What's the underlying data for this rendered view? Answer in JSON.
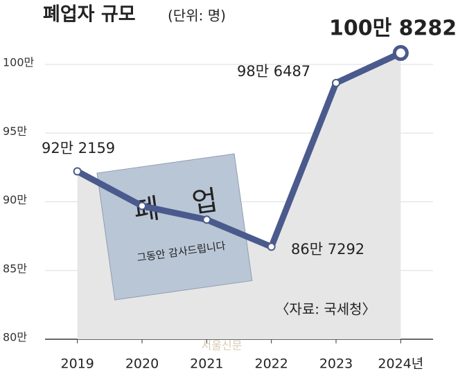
{
  "chart_data": {
    "type": "line",
    "title": "폐업자 규모",
    "subtitle": "(단위: 명)",
    "categories": [
      "2019",
      "2020",
      "2021",
      "2022",
      "2023",
      "2024년"
    ],
    "series": [
      {
        "name": "폐업자",
        "color": "#4a5a8c",
        "values": [
          92.2159,
          89.7,
          88.7,
          86.7292,
          98.6487,
          100.8282
        ],
        "value_labels": [
          "92만 2159",
          null,
          null,
          "86만 7292",
          "98만 6487",
          "100만 8282"
        ]
      }
    ],
    "ylim": [
      80,
      100.8282
    ],
    "yticks": [
      {
        "value": 80,
        "label": "80만"
      },
      {
        "value": 85,
        "label": "85만"
      },
      {
        "value": 90,
        "label": "90만"
      },
      {
        "value": 95,
        "label": "95만"
      },
      {
        "value": 100,
        "label": "100만"
      }
    ],
    "grid": true,
    "source": "〈자료: 국세청〉",
    "watermark": "서울신문",
    "image_text": [
      "폐",
      "업",
      "그동안 감사드립니다"
    ]
  }
}
